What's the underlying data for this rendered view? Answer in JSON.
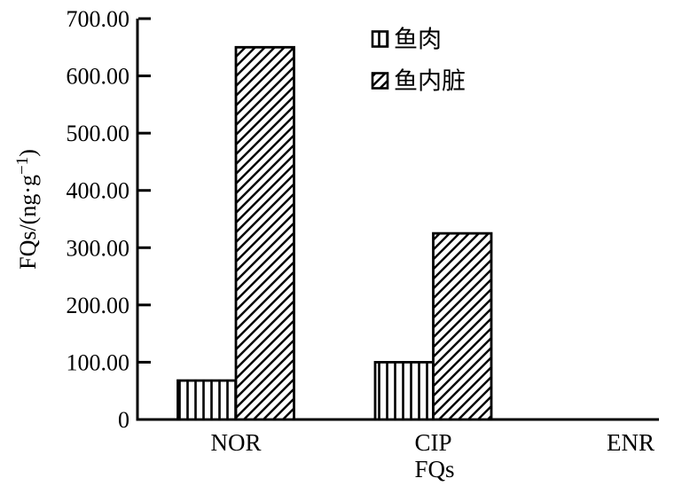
{
  "figure": {
    "background": "#ffffff",
    "ink": "#000000"
  },
  "chart_data": {
    "type": "bar",
    "title": "",
    "categories": [
      "NOR",
      "CIP",
      "ENR"
    ],
    "series": [
      {
        "name": "鱼肉",
        "slug": "fish-meat",
        "hatch": "vertical",
        "values": [
          68,
          100,
          0
        ]
      },
      {
        "name": "鱼内脏",
        "slug": "fish-viscera",
        "hatch": "diagonal",
        "values": [
          650,
          325,
          0
        ]
      }
    ],
    "xlabel": "FQs",
    "ylabel": "FQs/(ng·g⁻¹)",
    "ylim": [
      0,
      700
    ],
    "ytick_step": 100,
    "ytick_labels": [
      "0",
      "100.00",
      "200.00",
      "300.00",
      "400.00",
      "500.00",
      "600.00",
      "700.00"
    ],
    "legend_position": "top-center",
    "grid": false
  }
}
